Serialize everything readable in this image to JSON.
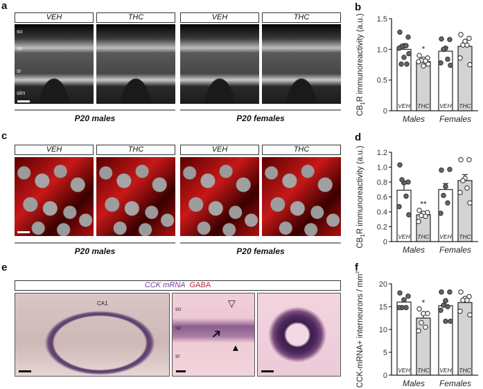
{
  "panels": {
    "a": {
      "label": "a",
      "headers": [
        "VEH",
        "THC",
        "VEH",
        "THC"
      ],
      "groups": [
        "P20 males",
        "P20 females"
      ],
      "layers": [
        "so",
        "sp",
        "sr",
        "slm"
      ]
    },
    "c": {
      "label": "c",
      "headers": [
        "VEH",
        "THC",
        "VEH",
        "THC"
      ],
      "groups": [
        "P20 males",
        "P20 females"
      ]
    },
    "e": {
      "label": "e",
      "header_mrna": "CCK mRNA",
      "header_gaba": "GABA",
      "region_label": "CA1",
      "layers": [
        "so",
        "sp",
        "sr"
      ],
      "colors": {
        "mrna": "#7a3d9a",
        "gaba": "#c0203a"
      }
    },
    "b": {
      "label": "b"
    },
    "d": {
      "label": "d"
    },
    "f": {
      "label": "f"
    }
  },
  "chart_data": [
    {
      "id": "b",
      "type": "bar",
      "ylabel": "CB1R immunoreactivity (a.u.)",
      "ylabel_prefix": "CB",
      "ylabel_sub": "1",
      "ylabel_suffix": "R immunoreactivity (a.u.)",
      "ylim": [
        0,
        1.5
      ],
      "yticks": [
        0,
        0.5,
        1.0,
        1.5
      ],
      "ytick_labels": [
        "0",
        "0.5",
        "1.0",
        "1.5"
      ],
      "categories": [
        "Males",
        "Females"
      ],
      "bars": [
        {
          "group": "Males",
          "label": "VEH",
          "mean": 1.0,
          "sem": 0.05,
          "fill": "#ffffff",
          "dot": "filled",
          "points": [
            1.28,
            1.2,
            1.06,
            1.05,
            1.06,
            1.02,
            0.93,
            0.87,
            0.76,
            0.76
          ],
          "sig": ""
        },
        {
          "group": "Males",
          "label": "THC",
          "mean": 0.8,
          "sem": 0.02,
          "fill": "#d3d3d3",
          "dot": "open",
          "points": [
            0.9,
            0.86,
            0.84,
            0.82,
            0.81,
            0.8,
            0.76,
            0.73
          ],
          "sig": "*"
        },
        {
          "group": "Females",
          "label": "VEH",
          "mean": 0.97,
          "sem": 0.06,
          "fill": "#ffffff",
          "dot": "filled",
          "points": [
            1.17,
            1.16,
            1.02,
            1.0,
            0.84,
            0.78,
            0.74
          ],
          "sig": ""
        },
        {
          "group": "Females",
          "label": "THC",
          "mean": 1.05,
          "sem": 0.06,
          "fill": "#d3d3d3",
          "dot": "open",
          "points": [
            1.24,
            1.18,
            1.13,
            1.07,
            1.07,
            0.86,
            0.75
          ],
          "sig": ""
        }
      ]
    },
    {
      "id": "d",
      "type": "bar",
      "ylabel": "CB1R immunoreactivity (a.u.)",
      "ylabel_prefix": "CB",
      "ylabel_sub": "1",
      "ylabel_suffix": "R immunoreactivity (a.u.)",
      "ylim": [
        0,
        1.2
      ],
      "yticks": [
        0,
        0.2,
        0.4,
        0.6,
        0.8,
        1.0,
        1.2
      ],
      "ytick_labels": [
        "0",
        "0.2",
        "0.4",
        "0.6",
        "0.8",
        "1.0",
        "1.2"
      ],
      "categories": [
        "Males",
        "Females"
      ],
      "bars": [
        {
          "group": "Males",
          "label": "VEH",
          "mean": 0.69,
          "sem": 0.09,
          "fill": "#ffffff",
          "dot": "filled",
          "points": [
            1.03,
            0.8,
            0.79,
            0.83,
            0.61,
            0.47,
            0.36
          ],
          "sig": ""
        },
        {
          "group": "Males",
          "label": "THC",
          "mean": 0.36,
          "sem": 0.04,
          "fill": "#d3d3d3",
          "dot": "open",
          "points": [
            0.42,
            0.39,
            0.38,
            0.35,
            0.34,
            0.27
          ],
          "sig": "**"
        },
        {
          "group": "Females",
          "label": "VEH",
          "mean": 0.7,
          "sem": 0.08,
          "fill": "#ffffff",
          "dot": "filled",
          "points": [
            0.96,
            0.97,
            0.74,
            0.62,
            0.52,
            0.38
          ],
          "sig": ""
        },
        {
          "group": "Females",
          "label": "THC",
          "mean": 0.82,
          "sem": 0.08,
          "fill": "#d3d3d3",
          "dot": "open",
          "points": [
            1.1,
            1.1,
            0.85,
            0.82,
            0.72,
            0.66,
            0.52
          ],
          "sig": ""
        }
      ]
    },
    {
      "id": "f",
      "type": "bar",
      "ylabel": "CCK-mRNA+ interneurons / mm²",
      "ylabel_prefix": "CCK-mRNA+ interneurons / mm",
      "ylabel_sup": "2",
      "ylim": [
        0,
        20
      ],
      "yticks": [
        0,
        5,
        10,
        15,
        20
      ],
      "ytick_labels": [
        "0",
        "5",
        "10",
        "15",
        "20"
      ],
      "categories": [
        "Males",
        "Females"
      ],
      "bars": [
        {
          "group": "Males",
          "label": "VEH",
          "mean": 16.0,
          "sem": 0.6,
          "fill": "#ffffff",
          "dot": "filled",
          "points": [
            18.0,
            17.3,
            16.5,
            14.8,
            14.8,
            14.8
          ],
          "sig": ""
        },
        {
          "group": "Males",
          "label": "THC",
          "mean": 12.5,
          "sem": 0.8,
          "fill": "#d3d3d3",
          "dot": "open",
          "points": [
            14.5,
            13.5,
            13.5,
            11.5,
            10.5,
            9.7
          ],
          "sig": "*"
        },
        {
          "group": "Females",
          "label": "VEH",
          "mean": 15.2,
          "sem": 1.0,
          "fill": "#ffffff",
          "dot": "filled",
          "points": [
            18.2,
            18.2,
            16.3,
            15.3,
            15.0,
            14.2,
            11.8,
            11.8
          ],
          "sig": ""
        },
        {
          "group": "Females",
          "label": "THC",
          "mean": 15.9,
          "sem": 0.7,
          "fill": "#d3d3d3",
          "dot": "open",
          "points": [
            18.2,
            17.2,
            16.8,
            16.4,
            16.4,
            14.0,
            13.2
          ],
          "sig": ""
        }
      ]
    }
  ]
}
